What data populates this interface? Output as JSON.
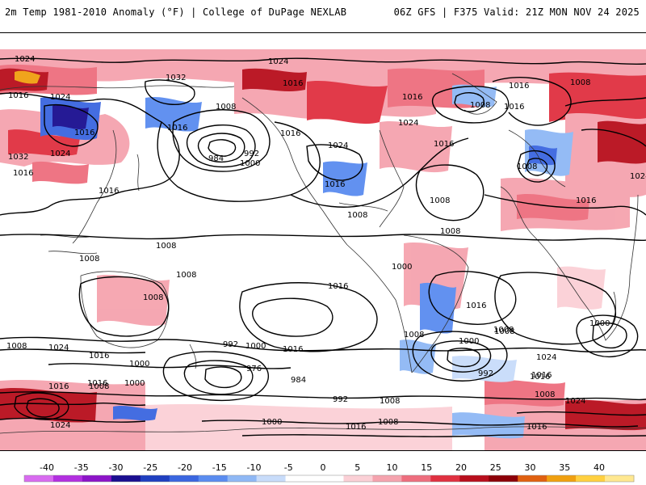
{
  "header": {
    "title_left": "2m Temp 1981-2010 Anomaly (°F) | College of DuPage NEXLAB",
    "title_right": "06Z GFS | F375 Valid: 21Z MON NOV 24 2025"
  },
  "colors": {
    "anomaly_scale": [
      "#d86bf0",
      "#b22fe0",
      "#8c14c8",
      "#1a0e90",
      "#1f3fc0",
      "#3a66e0",
      "#5a8cf0",
      "#8fb8f5",
      "#c8dcfa",
      "#ffffff",
      "#ffffff",
      "#fbd0d6",
      "#f5a3ae",
      "#ee6e7e",
      "#e03040",
      "#b80e1c",
      "#8c0008",
      "#e06010",
      "#f0a010",
      "#ffd040",
      "#ffe890"
    ],
    "contour": "#000000",
    "coast": "#333333"
  },
  "legend": {
    "ticks": [
      "-40",
      "-35",
      "-30",
      "-25",
      "-20",
      "-15",
      "-10",
      "-5",
      "0",
      "5",
      "10",
      "15",
      "20",
      "25",
      "30",
      "35",
      "40"
    ]
  },
  "isobar_labels": [
    "1024",
    "1024",
    "1016",
    "1016",
    "1032",
    "1024",
    "1016",
    "1024",
    "1016",
    "1032",
    "1016",
    "1016",
    "1008",
    "1016",
    "984",
    "992",
    "1000",
    "1016",
    "1024",
    "1016",
    "1024",
    "1016",
    "1016",
    "1008",
    "1008",
    "1008",
    "1016",
    "1008",
    "1008",
    "1008",
    "1008",
    "1008",
    "1016",
    "1000",
    "1008",
    "1008",
    "1016",
    "1008",
    "1000",
    "1016",
    "1000",
    "1016",
    "1008",
    "1024",
    "1016",
    "1016",
    "1000",
    "992",
    "1008",
    "1024",
    "1016",
    "992",
    "1000",
    "1016",
    "1008",
    "976",
    "984",
    "1016",
    "1008",
    "1000",
    "992",
    "1008",
    "1008",
    "1016",
    "1008",
    "1024",
    "1000",
    "1024",
    "1016",
    "1024"
  ]
}
